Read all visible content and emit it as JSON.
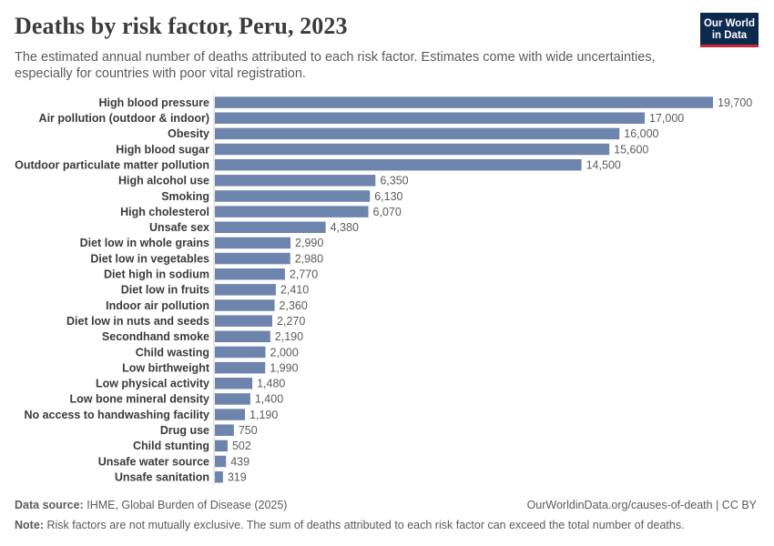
{
  "header": {
    "title": "Deaths by risk factor, Peru, 2023",
    "subtitle": "The estimated annual number of deaths attributed to each risk factor. Estimates come with wide uncertainties, especially for countries with poor vital registration."
  },
  "logo": {
    "line1": "Our World",
    "line2": "in Data"
  },
  "footer": {
    "source_label": "Data source:",
    "source_text": "IHME, Global Burden of Disease (2025)",
    "link_text": "OurWorldinData.org/causes-of-death | CC BY",
    "note_label": "Note:",
    "note_text": "Risk factors are not mutually exclusive. The sum of deaths attributed to each risk factor can exceed the total number of deaths."
  },
  "colors": {
    "bar": "#6d84ad",
    "label": "#3b3b3b",
    "value": "#5b5b5b",
    "axis": "#cccccc"
  },
  "chart_data": {
    "type": "bar",
    "orientation": "horizontal",
    "categories": [
      "High blood pressure",
      "Air pollution (outdoor & indoor)",
      "Obesity",
      "High blood sugar",
      "Outdoor particulate matter pollution",
      "High alcohol use",
      "Smoking",
      "High cholesterol",
      "Unsafe sex",
      "Diet low in whole grains",
      "Diet low in vegetables",
      "Diet high in sodium",
      "Diet low in fruits",
      "Indoor air pollution",
      "Diet low in nuts and seeds",
      "Secondhand smoke",
      "Child wasting",
      "Low birthweight",
      "Low physical activity",
      "Low bone mineral density",
      "No access to handwashing facility",
      "Drug use",
      "Child stunting",
      "Unsafe water source",
      "Unsafe sanitation"
    ],
    "values": [
      19700,
      17000,
      16000,
      15600,
      14500,
      6350,
      6130,
      6070,
      4380,
      2990,
      2980,
      2770,
      2410,
      2360,
      2270,
      2190,
      2000,
      1990,
      1480,
      1400,
      1190,
      750,
      502,
      439,
      319
    ],
    "value_labels": [
      "19,700",
      "17,000",
      "16,000",
      "15,600",
      "14,500",
      "6,350",
      "6,130",
      "6,070",
      "4,380",
      "2,990",
      "2,980",
      "2,770",
      "2,410",
      "2,360",
      "2,270",
      "2,190",
      "2,000",
      "1,990",
      "1,480",
      "1,400",
      "1,190",
      "750",
      "502",
      "439",
      "319"
    ],
    "title": "Deaths by risk factor, Peru, 2023",
    "xlim": [
      0,
      19700
    ]
  }
}
